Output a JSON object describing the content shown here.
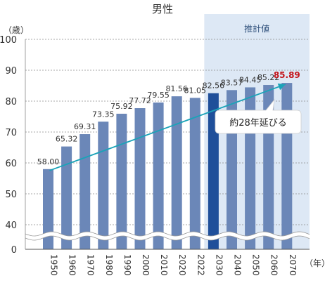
{
  "chart_data": {
    "type": "bar",
    "title": "男性",
    "ylabel": "（歳）",
    "xlabel": "（年）",
    "categories": [
      "1950",
      "1960",
      "1970",
      "1980",
      "1990",
      "2000",
      "2010",
      "2020",
      "2022",
      "2030",
      "2040",
      "2050",
      "2060",
      "2070"
    ],
    "values": [
      58.0,
      65.32,
      69.31,
      73.35,
      75.92,
      77.72,
      79.55,
      81.56,
      81.05,
      82.56,
      83.57,
      84.45,
      85.22,
      85.89
    ],
    "value_labels": [
      "58.00",
      "65.32",
      "69.31",
      "73.35",
      "75.92",
      "77.72",
      "79.55",
      "81.56",
      "81.05",
      "82.56",
      "83.57",
      "84.45",
      "85.22",
      "85.89"
    ],
    "yticks": [
      "100",
      "90",
      "80",
      "70",
      "60",
      "50",
      "40",
      "0"
    ],
    "ylim": [
      35,
      100
    ],
    "axis_break": true,
    "grid": true,
    "projection_label": "推計値",
    "projection_start_index": 9,
    "highlight_index": 9,
    "annotation": "約28年延びる",
    "colors": {
      "bar": "#6b87b8",
      "bar_highlight": "#1f4f9a",
      "projection_bg": "#dde8f5",
      "arrow": "#1aa3b8",
      "last_label": "#c4161c",
      "text": "#333333"
    }
  }
}
